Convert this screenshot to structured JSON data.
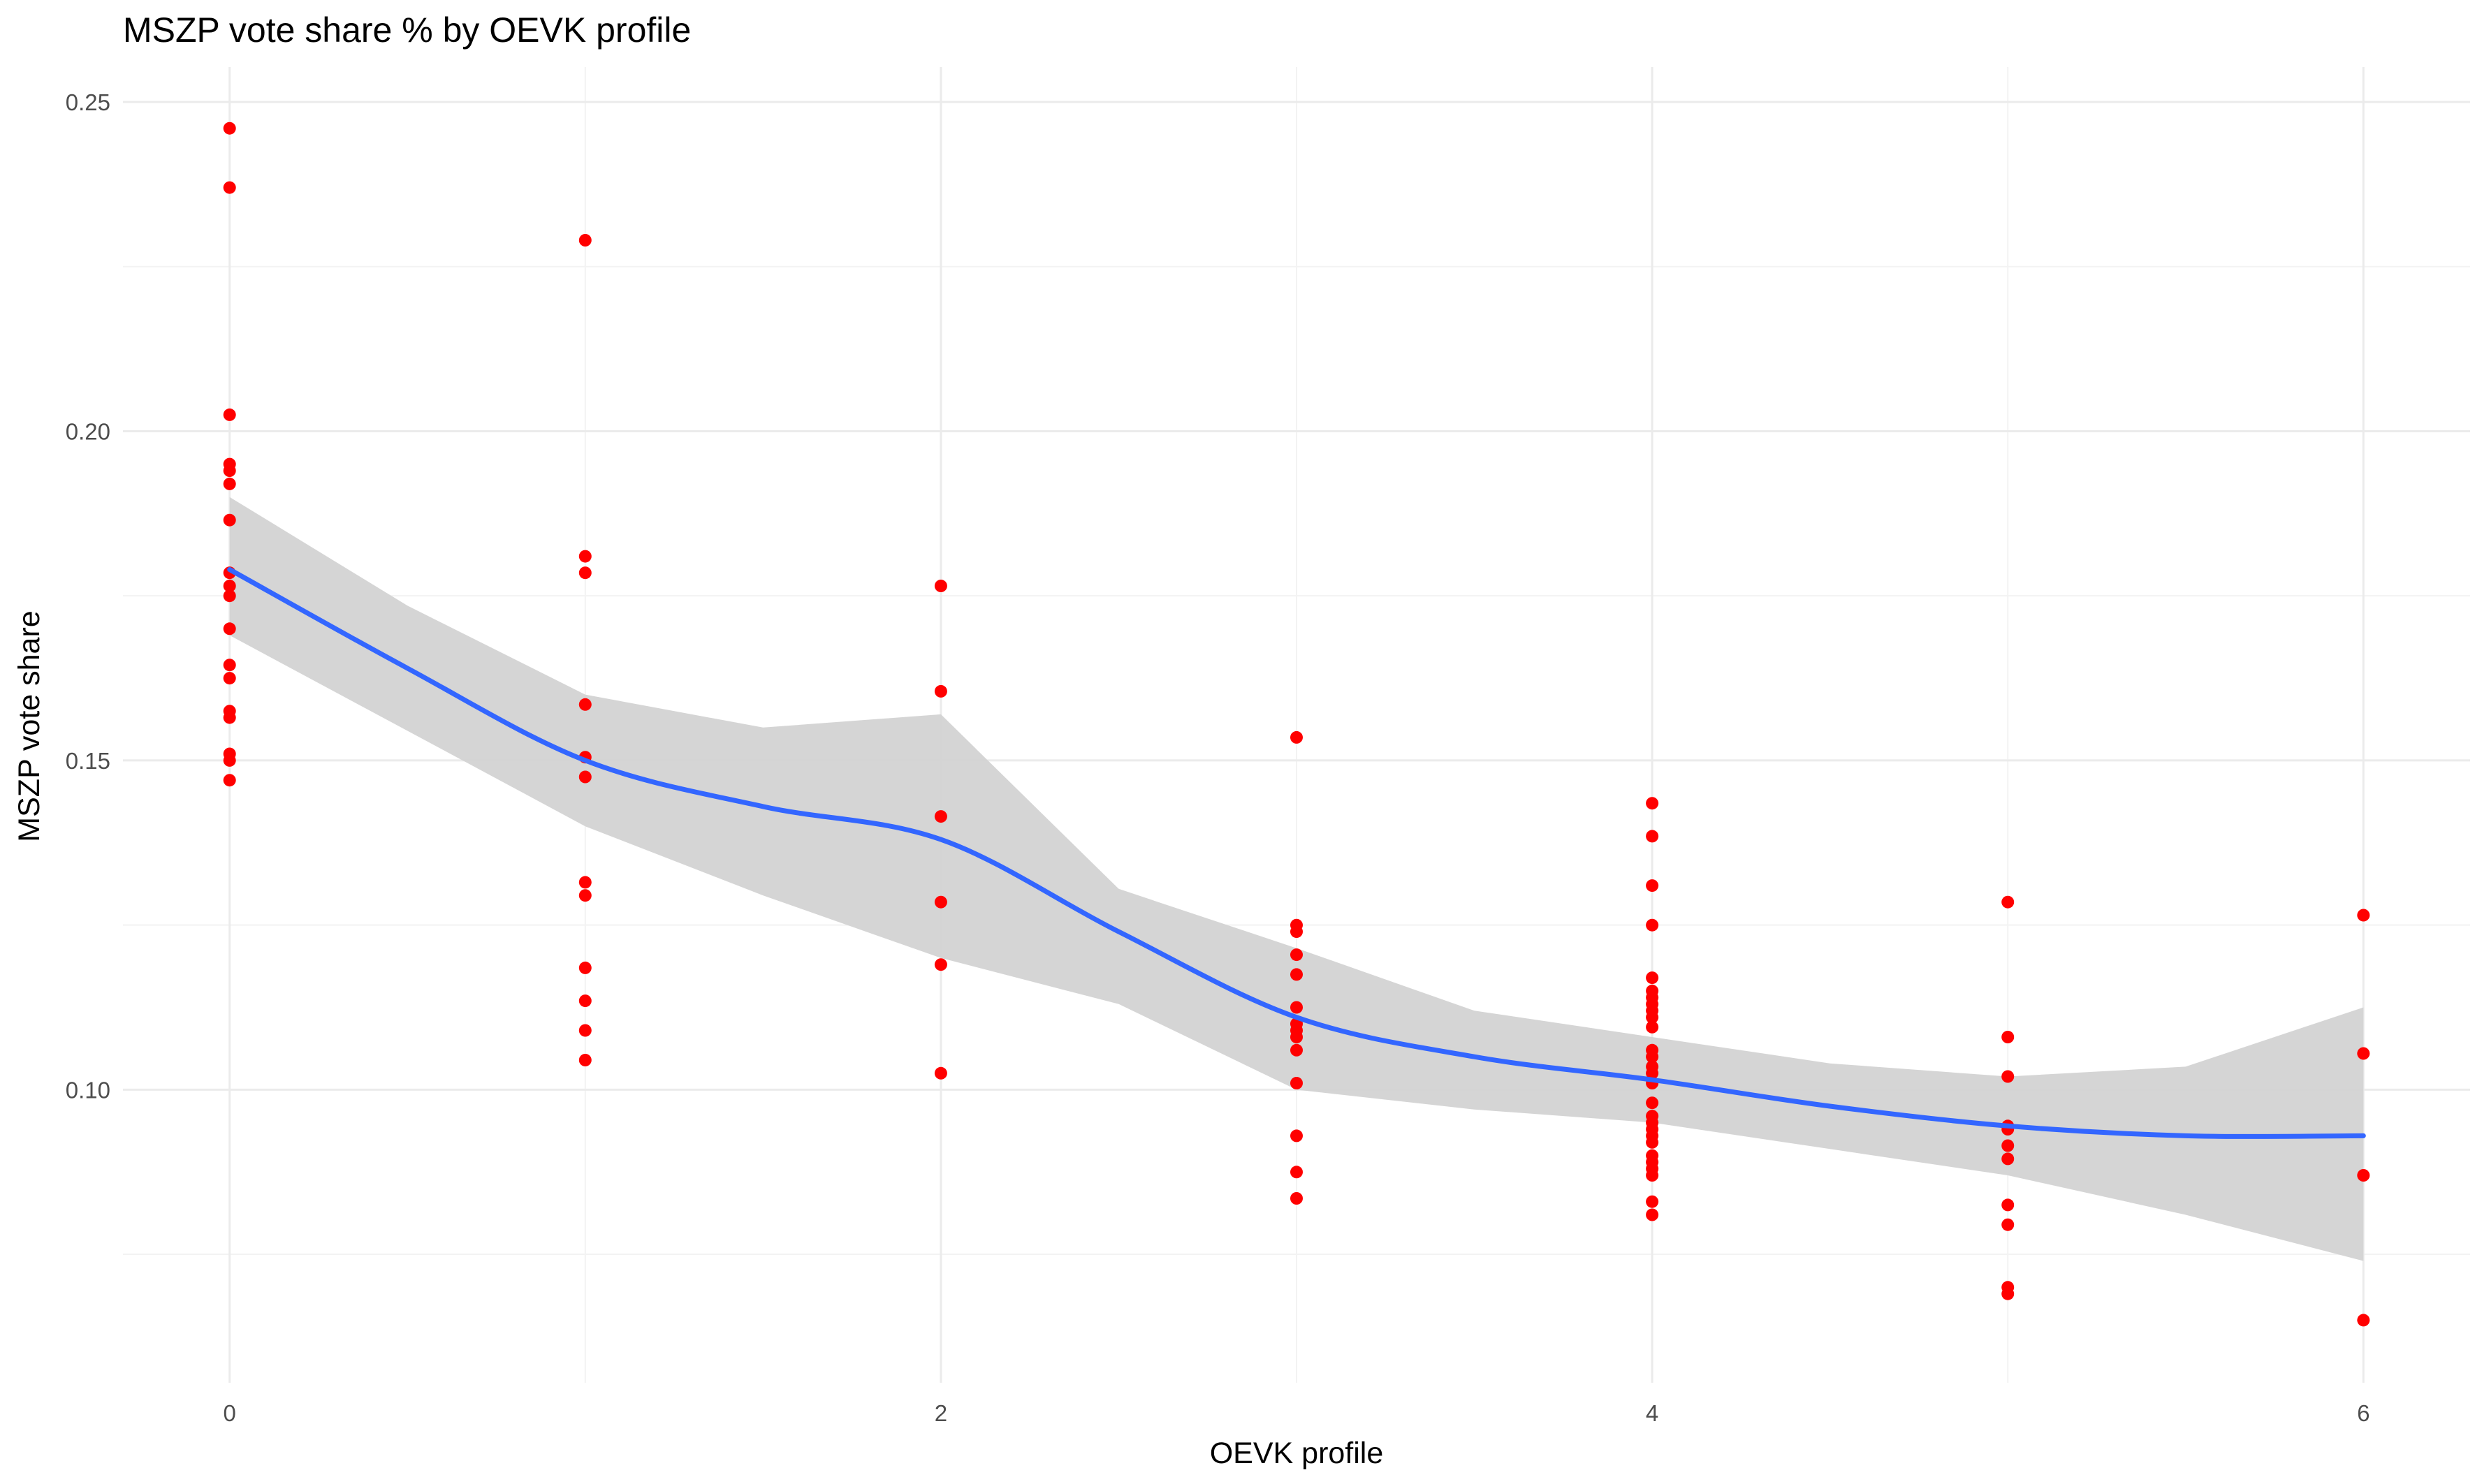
{
  "chart_data": {
    "type": "scatter",
    "title": "MSZP vote share % by OEVK profile",
    "xlabel": "OEVK profile",
    "ylabel": "MSZP vote share",
    "xlim": [
      -0.3,
      6.3
    ],
    "ylim": [
      0.0555,
      0.2553
    ],
    "x_ticks": [
      0,
      2,
      4,
      6
    ],
    "x_tick_labels": [
      "0",
      "2",
      "4",
      "6"
    ],
    "y_ticks": [
      0.1,
      0.15,
      0.2,
      0.25
    ],
    "y_tick_labels": [
      "0.10",
      "0.15",
      "0.20",
      "0.25"
    ],
    "grid": true,
    "legend": "none",
    "point_color": "#ff0000",
    "smooth_color": "#3366ff",
    "ribbon_color": "#d3d3d3",
    "points": [
      {
        "x": 0,
        "y": 0.246
      },
      {
        "x": 0,
        "y": 0.237
      },
      {
        "x": 0,
        "y": 0.2025
      },
      {
        "x": 0,
        "y": 0.195
      },
      {
        "x": 0,
        "y": 0.194
      },
      {
        "x": 0,
        "y": 0.192
      },
      {
        "x": 0,
        "y": 0.1865
      },
      {
        "x": 0,
        "y": 0.1785
      },
      {
        "x": 0,
        "y": 0.1765
      },
      {
        "x": 0,
        "y": 0.175
      },
      {
        "x": 0,
        "y": 0.17
      },
      {
        "x": 0,
        "y": 0.1645
      },
      {
        "x": 0,
        "y": 0.1625
      },
      {
        "x": 0,
        "y": 0.1575
      },
      {
        "x": 0,
        "y": 0.1565
      },
      {
        "x": 0,
        "y": 0.151
      },
      {
        "x": 0,
        "y": 0.15
      },
      {
        "x": 0,
        "y": 0.147
      },
      {
        "x": 1,
        "y": 0.229
      },
      {
        "x": 1,
        "y": 0.181
      },
      {
        "x": 1,
        "y": 0.1785
      },
      {
        "x": 1,
        "y": 0.1585
      },
      {
        "x": 1,
        "y": 0.1505
      },
      {
        "x": 1,
        "y": 0.1475
      },
      {
        "x": 1,
        "y": 0.1315
      },
      {
        "x": 1,
        "y": 0.1295
      },
      {
        "x": 1,
        "y": 0.1185
      },
      {
        "x": 1,
        "y": 0.1135
      },
      {
        "x": 1,
        "y": 0.109
      },
      {
        "x": 1,
        "y": 0.1045
      },
      {
        "x": 2,
        "y": 0.1765
      },
      {
        "x": 2,
        "y": 0.1605
      },
      {
        "x": 2,
        "y": 0.1415
      },
      {
        "x": 2,
        "y": 0.1285
      },
      {
        "x": 2,
        "y": 0.119
      },
      {
        "x": 2,
        "y": 0.1025
      },
      {
        "x": 3,
        "y": 0.1535
      },
      {
        "x": 3,
        "y": 0.125
      },
      {
        "x": 3,
        "y": 0.124
      },
      {
        "x": 3,
        "y": 0.1205
      },
      {
        "x": 3,
        "y": 0.1175
      },
      {
        "x": 3,
        "y": 0.1125
      },
      {
        "x": 3,
        "y": 0.11
      },
      {
        "x": 3,
        "y": 0.109
      },
      {
        "x": 3,
        "y": 0.108
      },
      {
        "x": 3,
        "y": 0.106
      },
      {
        "x": 3,
        "y": 0.101
      },
      {
        "x": 3,
        "y": 0.093
      },
      {
        "x": 3,
        "y": 0.0875
      },
      {
        "x": 3,
        "y": 0.0835
      },
      {
        "x": 4,
        "y": 0.1435
      },
      {
        "x": 4,
        "y": 0.1385
      },
      {
        "x": 4,
        "y": 0.131
      },
      {
        "x": 4,
        "y": 0.125
      },
      {
        "x": 4,
        "y": 0.117
      },
      {
        "x": 4,
        "y": 0.115
      },
      {
        "x": 4,
        "y": 0.114
      },
      {
        "x": 4,
        "y": 0.113
      },
      {
        "x": 4,
        "y": 0.112
      },
      {
        "x": 4,
        "y": 0.111
      },
      {
        "x": 4,
        "y": 0.1095
      },
      {
        "x": 4,
        "y": 0.106
      },
      {
        "x": 4,
        "y": 0.105
      },
      {
        "x": 4,
        "y": 0.1035
      },
      {
        "x": 4,
        "y": 0.1025
      },
      {
        "x": 4,
        "y": 0.101
      },
      {
        "x": 4,
        "y": 0.098
      },
      {
        "x": 4,
        "y": 0.096
      },
      {
        "x": 4,
        "y": 0.095
      },
      {
        "x": 4,
        "y": 0.094
      },
      {
        "x": 4,
        "y": 0.093
      },
      {
        "x": 4,
        "y": 0.092
      },
      {
        "x": 4,
        "y": 0.09
      },
      {
        "x": 4,
        "y": 0.089
      },
      {
        "x": 4,
        "y": 0.088
      },
      {
        "x": 4,
        "y": 0.087
      },
      {
        "x": 4,
        "y": 0.083
      },
      {
        "x": 4,
        "y": 0.081
      },
      {
        "x": 5,
        "y": 0.1285
      },
      {
        "x": 5,
        "y": 0.108
      },
      {
        "x": 5,
        "y": 0.102
      },
      {
        "x": 5,
        "y": 0.0945
      },
      {
        "x": 5,
        "y": 0.094
      },
      {
        "x": 5,
        "y": 0.0915
      },
      {
        "x": 5,
        "y": 0.0895
      },
      {
        "x": 5,
        "y": 0.0825
      },
      {
        "x": 5,
        "y": 0.0795
      },
      {
        "x": 5,
        "y": 0.07
      },
      {
        "x": 5,
        "y": 0.069
      },
      {
        "x": 6,
        "y": 0.1265
      },
      {
        "x": 6,
        "y": 0.1055
      },
      {
        "x": 6,
        "y": 0.087
      },
      {
        "x": 6,
        "y": 0.065
      }
    ],
    "smooth": {
      "x": [
        0,
        0.5,
        1,
        1.5,
        2,
        2.5,
        3,
        3.5,
        4,
        4.5,
        5,
        5.5,
        6
      ],
      "y": [
        0.179,
        0.164,
        0.15,
        0.143,
        0.138,
        0.124,
        0.111,
        0.105,
        0.1015,
        0.0975,
        0.0945,
        0.093,
        0.093
      ],
      "lower": [
        0.169,
        0.1545,
        0.14,
        0.1295,
        0.12,
        0.113,
        0.1,
        0.097,
        0.095,
        0.091,
        0.087,
        0.081,
        0.074
      ],
      "upper": [
        0.19,
        0.1735,
        0.16,
        0.155,
        0.157,
        0.1305,
        0.1215,
        0.112,
        0.108,
        0.104,
        0.102,
        0.1035,
        0.1125
      ]
    }
  }
}
